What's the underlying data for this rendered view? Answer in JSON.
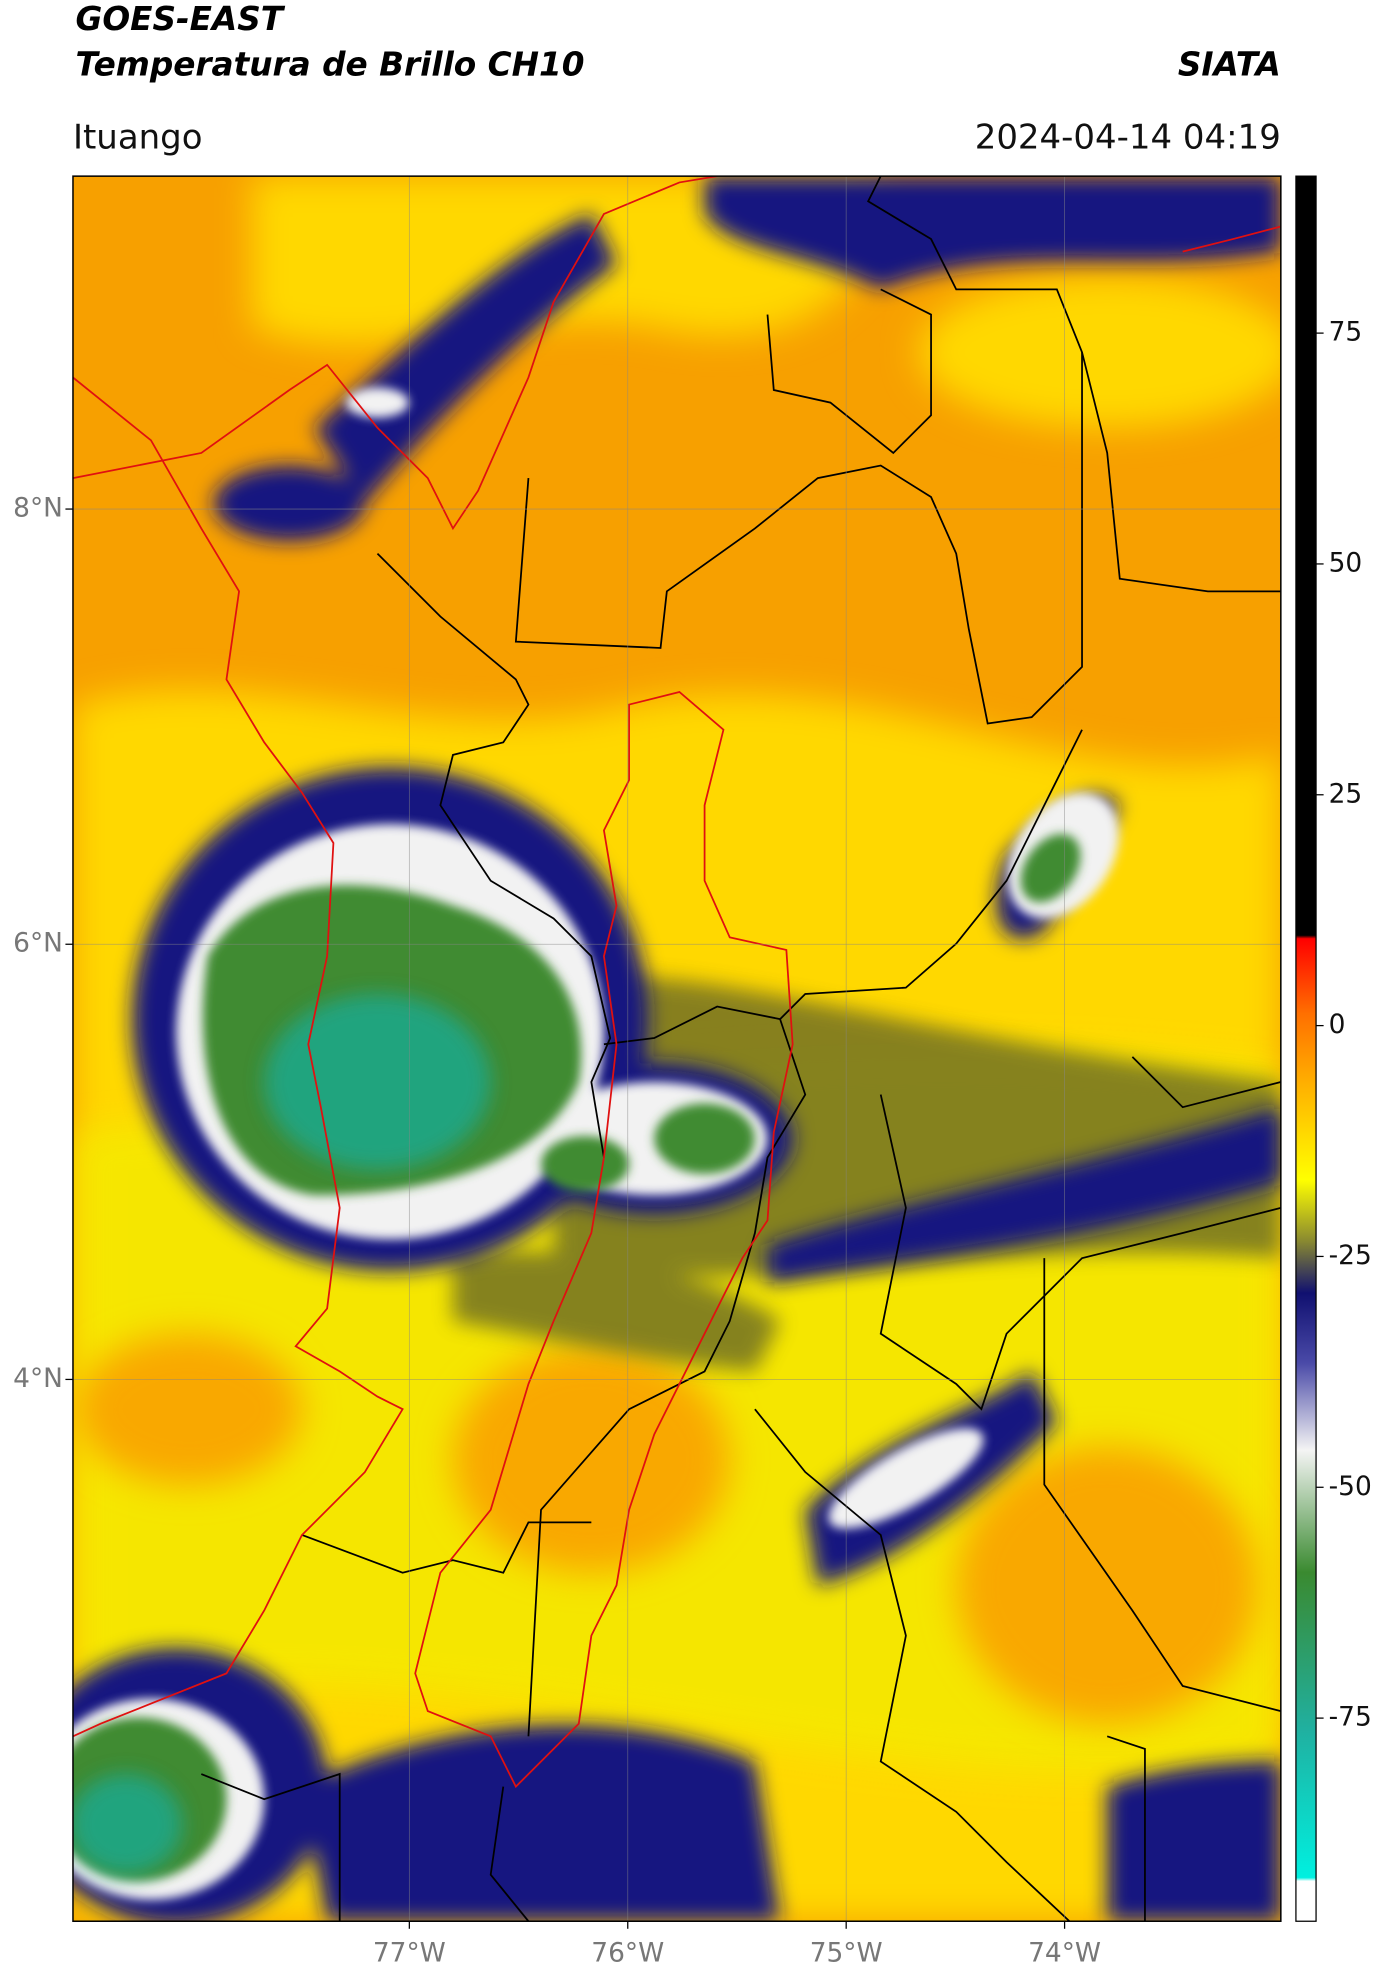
{
  "chart_data": {
    "type": "map",
    "title": "GOES-EAST",
    "subtitle": "Temperatura de Brillo CH10",
    "source": "SIATA",
    "location": "Ituango",
    "timestamp": "2024-04-14 04:19",
    "xlim": [
      -78.54,
      -73.01
    ],
    "ylim": [
      1.51,
      9.53
    ],
    "xticks": [
      {
        "value": -77,
        "label": "77°W"
      },
      {
        "value": -76,
        "label": "76°W"
      },
      {
        "value": -75,
        "label": "75°W"
      },
      {
        "value": -74,
        "label": "74°W"
      }
    ],
    "yticks": [
      {
        "value": 8,
        "label": "8°N"
      },
      {
        "value": 6,
        "label": "6°N"
      },
      {
        "value": 4,
        "label": "4°N"
      }
    ],
    "grid": true,
    "colorbar": {
      "lim": [
        -97,
        92
      ],
      "ticks": [
        75,
        50,
        25,
        0,
        -25,
        -50,
        -75
      ]
    }
  }
}
